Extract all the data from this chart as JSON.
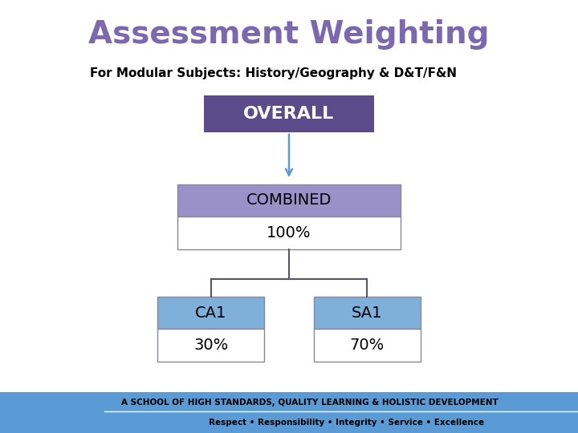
{
  "title": "Assessment Weighting",
  "subtitle": "For Modular Subjects: History/Geography & D&T/F&N",
  "title_color": "#7B68AE",
  "subtitle_color": "#000000",
  "overall_bg": "#5B4B8A",
  "overall_text": "OVERALL",
  "combined_header_bg": "#9B91C9",
  "combined_header_text": "COMBINED",
  "combined_value": "100%",
  "combined_border": "#888899",
  "ca1_header_bg": "#7EB0D9",
  "sa1_header_bg": "#7EB0D9",
  "ca1_label": "CA1",
  "sa1_label": "SA1",
  "ca1_value": "30%",
  "sa1_value": "70%",
  "arrow_color": "#5B9BD5",
  "connector_color": "#555566",
  "footer_bar_color": "#5B9BD5",
  "footer_text1": "A SCHOOL OF HIGH STANDARDS, QUALITY LEARNING & HOLISTIC DEVELOPMENT",
  "footer_text2": "Respect • Responsibility • Integrity • Service • Excellence",
  "footer_text1_color": "#000000",
  "footer_text2_color": "#000000",
  "bg_color": "#FFFFFF",
  "figw": 7.2,
  "figh": 5.4,
  "dpi": 100
}
